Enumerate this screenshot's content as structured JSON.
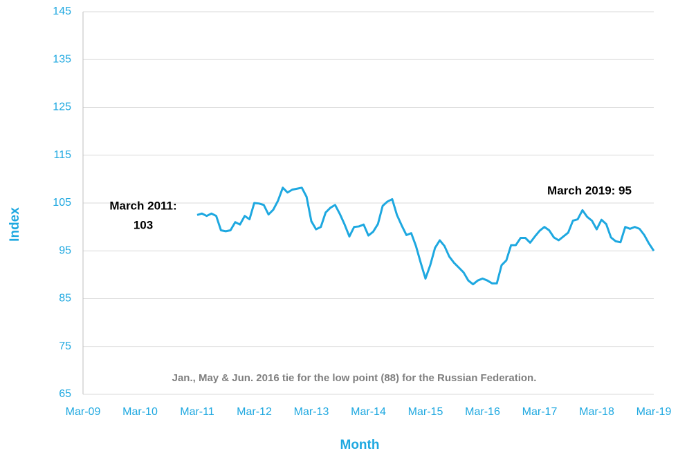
{
  "chart_data": {
    "type": "line",
    "x_label": "Month",
    "y_label": "Index",
    "annotations": [
      "March 2011:",
      "103",
      "March 2019: 95",
      "Jan., May & Jun. 2016 tie for the low point (88) for the Russian Federation."
    ],
    "categories": [
      "Mar-09",
      null,
      null,
      null,
      null,
      null,
      null,
      null,
      null,
      null,
      null,
      null,
      "Mar-10",
      null,
      null,
      null,
      null,
      null,
      null,
      null,
      null,
      null,
      null,
      null,
      "Mar-11",
      null,
      null,
      null,
      null,
      null,
      null,
      null,
      null,
      null,
      null,
      null,
      "Mar-12",
      null,
      null,
      null,
      null,
      null,
      null,
      null,
      null,
      null,
      null,
      null,
      "Mar-13",
      null,
      null,
      null,
      null,
      null,
      null,
      null,
      null,
      null,
      null,
      null,
      "Mar-14",
      null,
      null,
      null,
      null,
      null,
      null,
      null,
      null,
      null,
      null,
      null,
      "Mar-15",
      null,
      null,
      null,
      null,
      null,
      null,
      null,
      null,
      null,
      null,
      null,
      "Mar-16",
      null,
      null,
      null,
      null,
      null,
      null,
      null,
      null,
      null,
      null,
      null,
      "Mar-17",
      null,
      null,
      null,
      null,
      null,
      null,
      null,
      null,
      null,
      null,
      null,
      "Mar-18",
      null,
      null,
      null,
      null,
      null,
      null,
      null,
      null,
      null,
      null,
      null,
      "Mar-19"
    ],
    "series": [
      {
        "name": "Index",
        "color": "#1ea8e0",
        "values": [
          null,
          null,
          null,
          null,
          null,
          null,
          null,
          null,
          null,
          null,
          null,
          null,
          null,
          null,
          null,
          null,
          null,
          null,
          null,
          null,
          null,
          null,
          null,
          null,
          102.5,
          102.8,
          102.3,
          102.8,
          102.3,
          99.3,
          99.1,
          99.3,
          101,
          100.5,
          102.3,
          101.6,
          105,
          104.9,
          104.6,
          102.6,
          103.6,
          105.5,
          108.2,
          107.2,
          107.8,
          108,
          108.2,
          106.3,
          101.2,
          99.5,
          100,
          103,
          104,
          104.6,
          102.7,
          100.5,
          98,
          100,
          100.1,
          100.5,
          98.2,
          99,
          100.6,
          104.4,
          105.3,
          105.8,
          102.5,
          100.3,
          98.3,
          98.7,
          96,
          92.5,
          89.2,
          92,
          95.6,
          97.2,
          96,
          93.8,
          92.5,
          91.5,
          90.5,
          88.8,
          88,
          88.8,
          89.2,
          88.8,
          88.2,
          88.2,
          92,
          93,
          96.2,
          96.2,
          97.7,
          97.7,
          96.7,
          98,
          99.2,
          100,
          99.3,
          97.8,
          97.2,
          98,
          98.8,
          101.3,
          101.6,
          103.5,
          102.1,
          101.3,
          99.5,
          101.5,
          100.6,
          97.8,
          97,
          96.8,
          100,
          99.6,
          100,
          99.6,
          98.3,
          96.5,
          95
        ]
      }
    ],
    "ylim": [
      65,
      145
    ],
    "yticks": [
      65,
      75,
      85,
      95,
      105,
      115,
      125,
      135,
      145
    ],
    "grid": true
  }
}
